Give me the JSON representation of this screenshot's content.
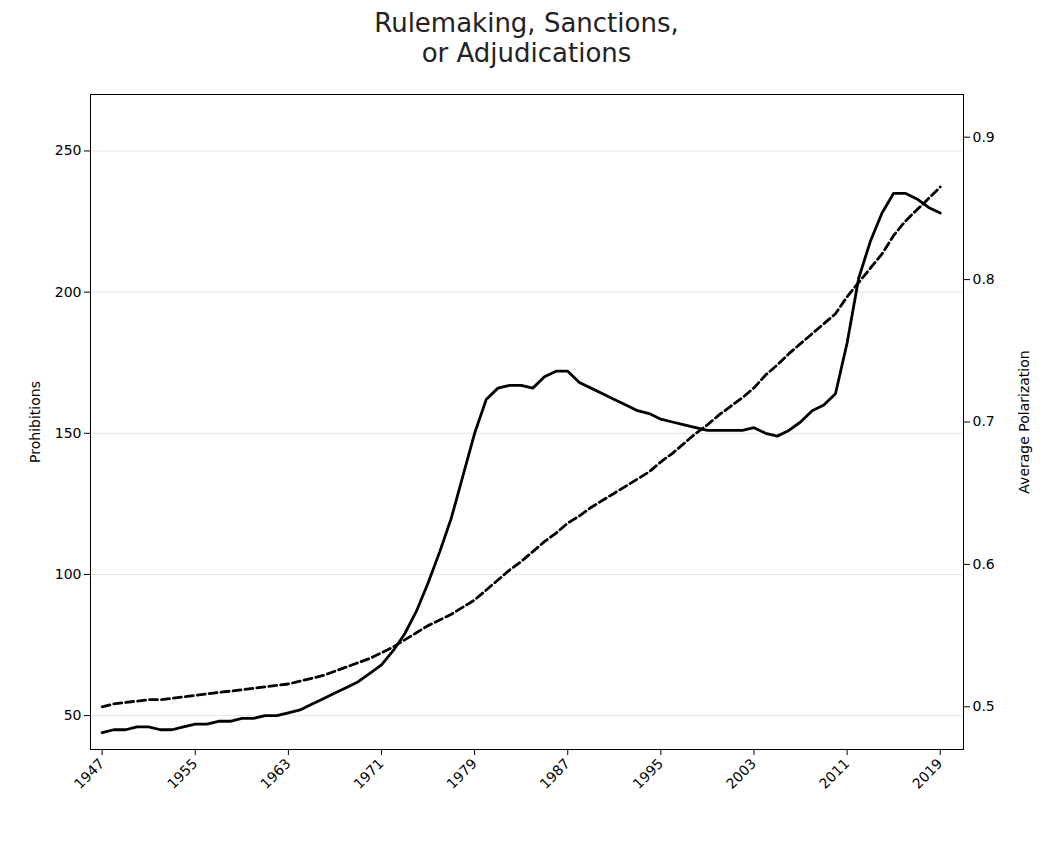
{
  "chart_data": {
    "type": "line",
    "title": "Rulemaking, Sanctions,\nor Adjudications",
    "ylabel": "Prohibitions",
    "y2label": "Average Polarization",
    "x": [
      1947,
      1948,
      1949,
      1950,
      1951,
      1952,
      1953,
      1954,
      1955,
      1956,
      1957,
      1958,
      1959,
      1960,
      1961,
      1962,
      1963,
      1964,
      1965,
      1966,
      1967,
      1968,
      1969,
      1970,
      1971,
      1972,
      1973,
      1974,
      1975,
      1976,
      1977,
      1978,
      1979,
      1980,
      1981,
      1982,
      1983,
      1984,
      1985,
      1986,
      1987,
      1988,
      1989,
      1990,
      1991,
      1992,
      1993,
      1994,
      1995,
      1996,
      1997,
      1998,
      1999,
      2000,
      2001,
      2002,
      2003,
      2004,
      2005,
      2006,
      2007,
      2008,
      2009,
      2010,
      2011,
      2012,
      2013,
      2014,
      2015,
      2016,
      2017,
      2018,
      2019
    ],
    "xlim": [
      1946,
      2021
    ],
    "xticks": [
      1947,
      1955,
      1963,
      1971,
      1979,
      1987,
      1995,
      2003,
      2011,
      2019
    ],
    "ylim": [
      38,
      270
    ],
    "yticks": [
      50,
      100,
      150,
      200,
      250
    ],
    "y2lim": [
      0.47,
      0.93
    ],
    "y2ticks": [
      0.5,
      0.6,
      0.7,
      0.8,
      0.9
    ],
    "grid": true,
    "series": [
      {
        "color": "black",
        "line_style": "solid",
        "values": [
          44,
          45,
          45,
          46,
          46,
          45,
          45,
          46,
          47,
          47,
          48,
          48,
          49,
          49,
          50,
          50,
          51,
          52,
          54,
          56,
          58,
          60,
          62,
          65,
          68,
          73,
          79,
          87,
          97,
          108,
          120,
          135,
          150,
          162,
          166,
          167,
          167,
          166,
          170,
          172,
          172,
          168,
          166,
          164,
          162,
          160,
          158,
          157,
          155,
          154,
          153,
          152,
          151,
          151,
          151,
          151,
          152,
          150,
          149,
          151,
          154,
          158,
          160,
          164,
          182,
          205,
          218,
          228,
          235,
          235,
          233,
          230,
          228
        ]
      },
      {
        "color": "black",
        "line_style": "dashed",
        "axis": "y2",
        "values": [
          0.5,
          0.502,
          0.503,
          0.504,
          0.505,
          0.505,
          0.506,
          0.507,
          0.508,
          0.509,
          0.51,
          0.511,
          0.512,
          0.513,
          0.514,
          0.515,
          0.516,
          0.518,
          0.52,
          0.522,
          0.525,
          0.528,
          0.531,
          0.534,
          0.538,
          0.542,
          0.547,
          0.552,
          0.557,
          0.561,
          0.565,
          0.57,
          0.575,
          0.582,
          0.589,
          0.596,
          0.602,
          0.609,
          0.616,
          0.622,
          0.629,
          0.634,
          0.64,
          0.645,
          0.65,
          0.655,
          0.66,
          0.665,
          0.672,
          0.678,
          0.685,
          0.692,
          0.698,
          0.705,
          0.711,
          0.717,
          0.724,
          0.733,
          0.74,
          0.748,
          0.755,
          0.762,
          0.769,
          0.776,
          0.788,
          0.798,
          0.808,
          0.818,
          0.831,
          0.841,
          0.849,
          0.857,
          0.865
        ]
      }
    ]
  }
}
